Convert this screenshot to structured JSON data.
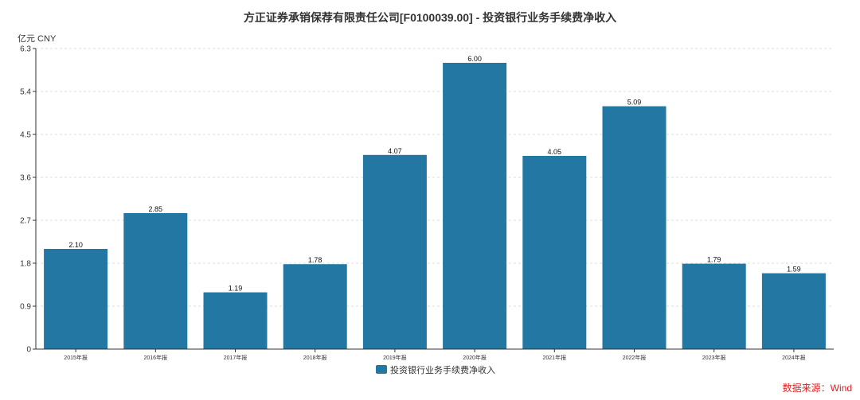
{
  "chart_data": {
    "type": "bar",
    "title": "方正证券承销保荐有限责任公司[F0100039.00] - 投资银行业务手续费净收入",
    "ylabel": "亿元  CNY",
    "categories": [
      "2015年报",
      "2016年报",
      "2017年报",
      "2018年报",
      "2019年报",
      "2020年报",
      "2021年报",
      "2022年报",
      "2023年报",
      "2024年报"
    ],
    "series": [
      {
        "name": "投资银行业务手续费净收入",
        "values": [
          2.1,
          2.85,
          1.19,
          1.78,
          4.07,
          6.0,
          4.05,
          5.09,
          1.79,
          1.59
        ],
        "color": "#2277a3"
      }
    ],
    "data_labels": [
      "2.10",
      "2.85",
      "1.19",
      "1.78",
      "4.07",
      "6.00",
      "4.05",
      "5.09",
      "1.79",
      "1.59"
    ],
    "ylim": [
      0,
      6.3
    ],
    "yticks": [
      "0",
      "0.9",
      "1.8",
      "2.7",
      "3.6",
      "4.5",
      "5.4",
      "6.3"
    ],
    "grid": "horizontal dashed",
    "legend": "bottom-center"
  },
  "source": "数据来源：Wind"
}
